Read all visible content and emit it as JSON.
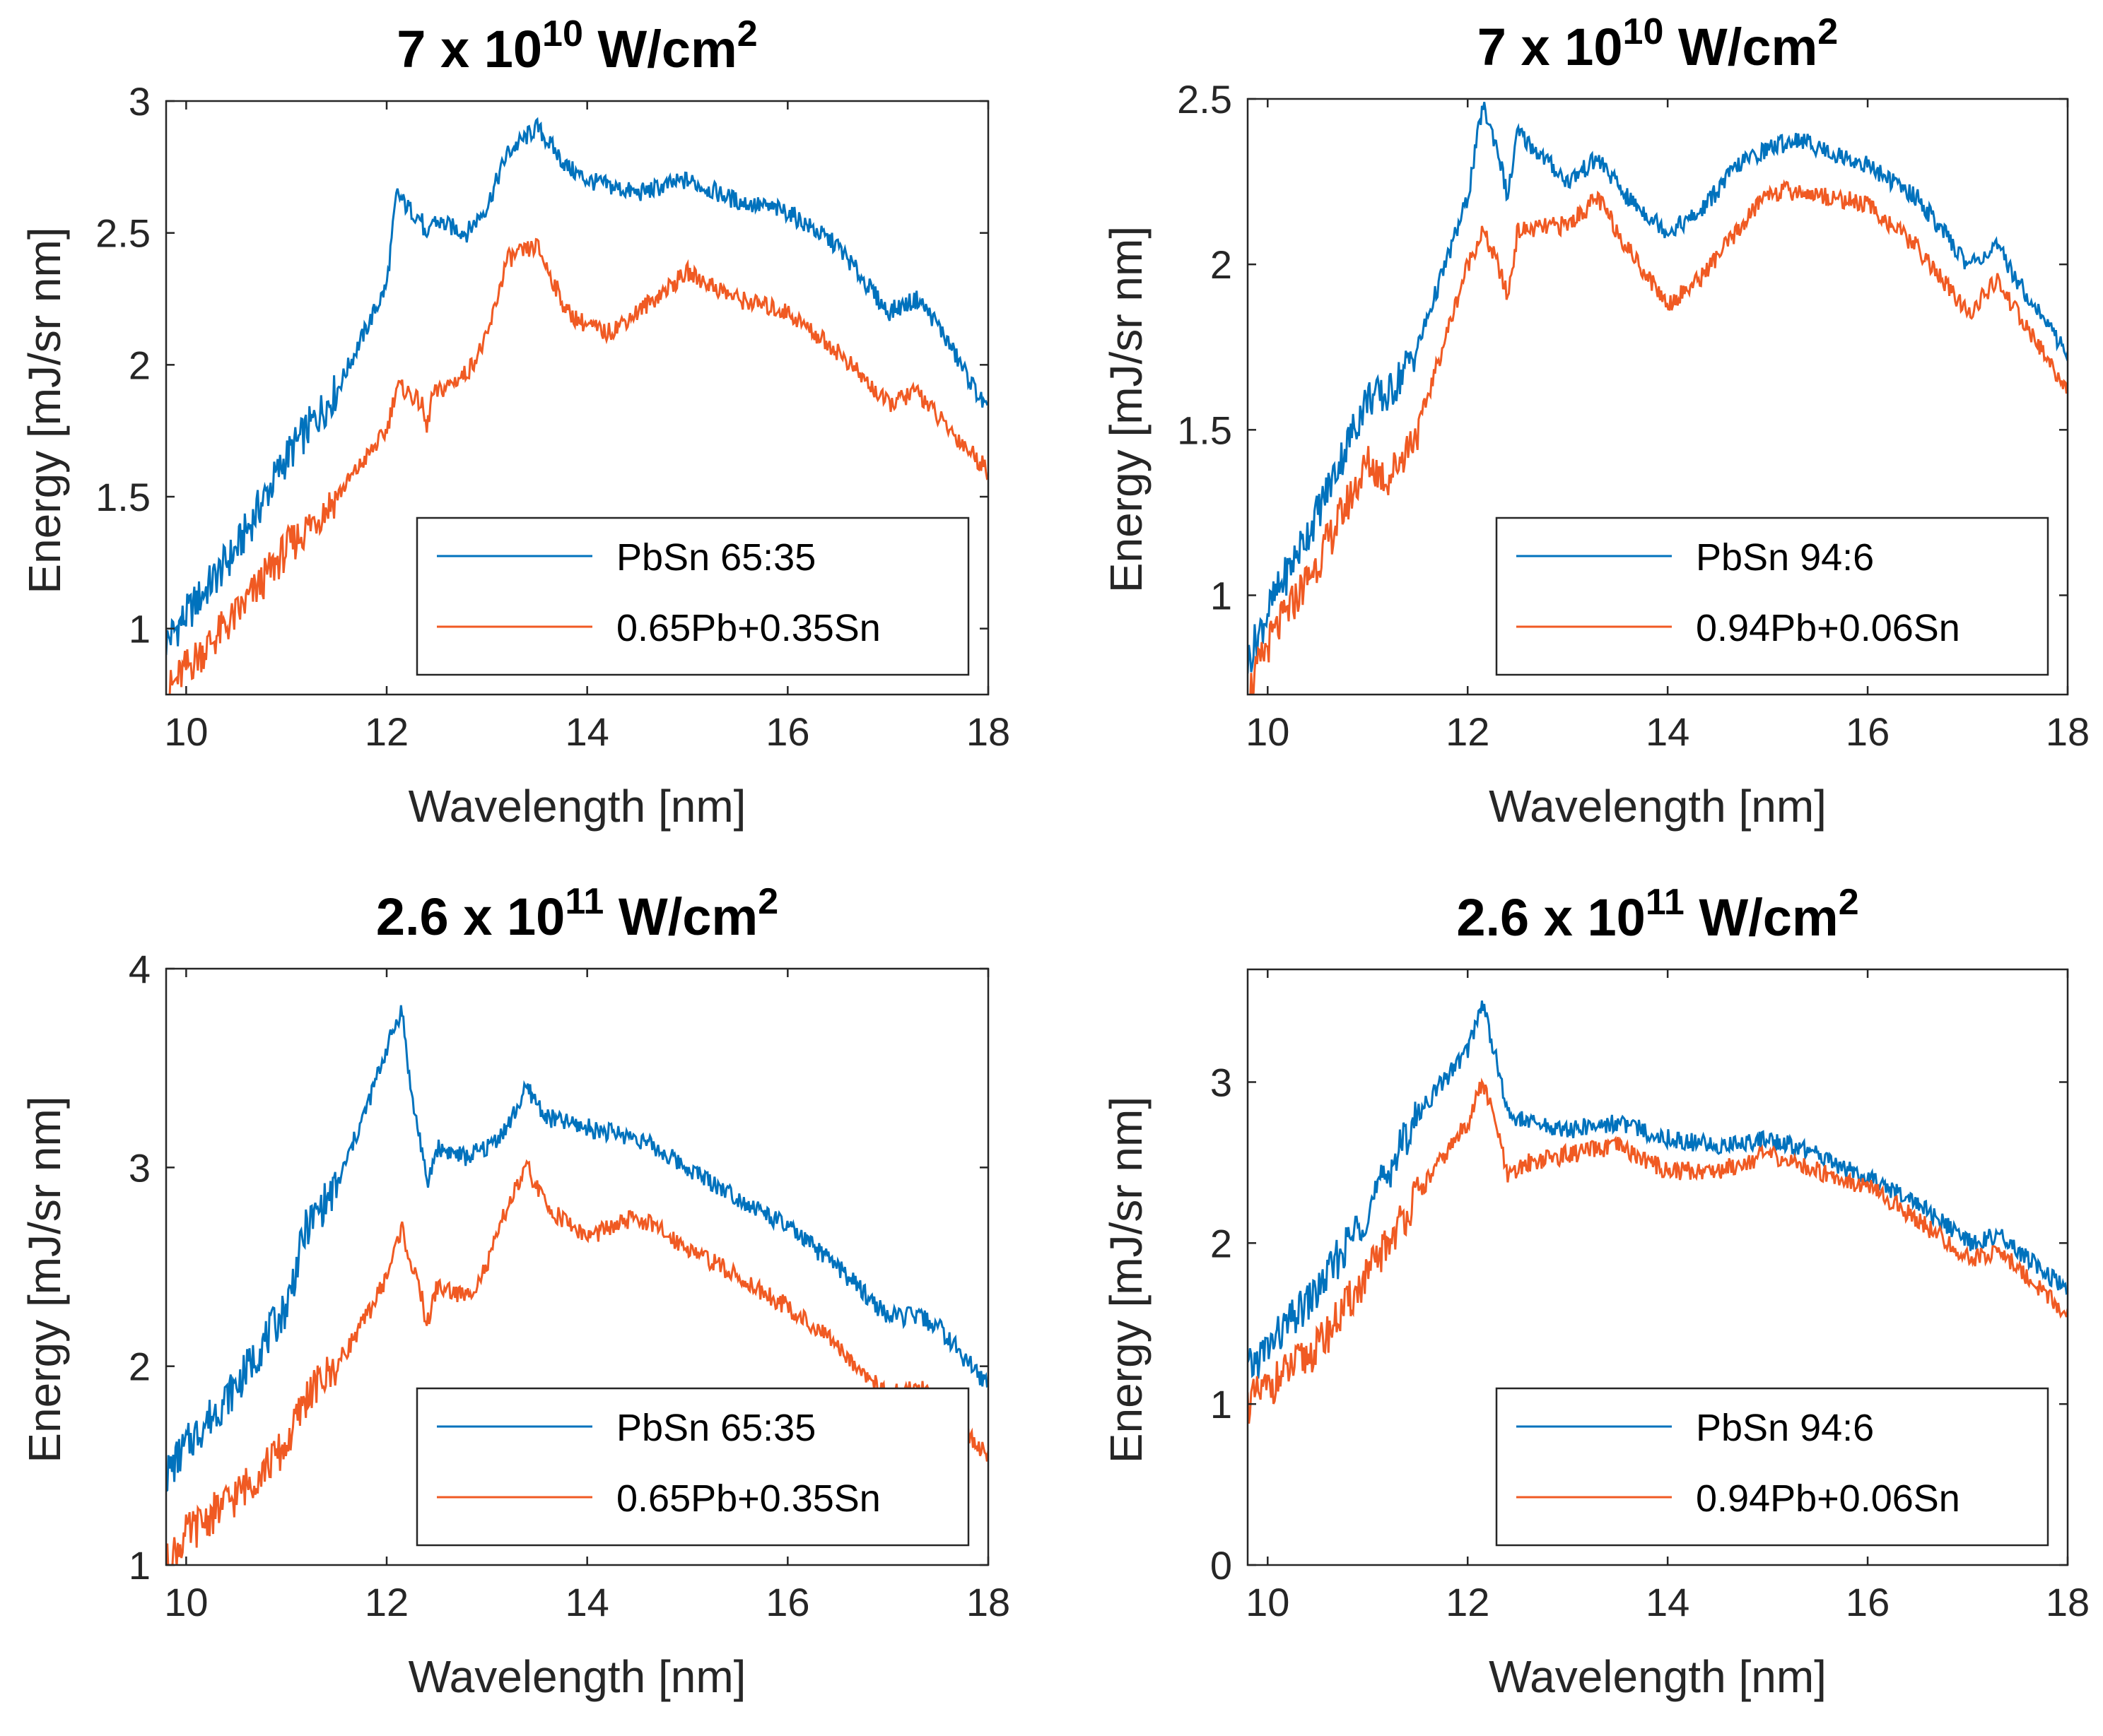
{
  "colors": {
    "blue": "#0072BD",
    "orange": "#F05A23",
    "axis": "#262626"
  },
  "chart_data": [
    {
      "type": "line",
      "title_base": "7 x 10",
      "title_exp": "10",
      "title_unit": " W/cm",
      "title_unit_exp": "2",
      "xlabel": "Wavelength [nm]",
      "ylabel": "Energy [mJ/sr nm]",
      "xlim": [
        9.8,
        18
      ],
      "ylim": [
        0.75,
        3
      ],
      "xticks": [
        10,
        12,
        14,
        16,
        18
      ],
      "xtick_labels": [
        "10",
        "12",
        "14",
        "16",
        "18"
      ],
      "yticks": [
        1,
        1.5,
        2,
        2.5,
        3
      ],
      "ytick_labels": [
        "1",
        "1.5",
        "2",
        "2.5",
        "3"
      ],
      "legend": "bottom-right",
      "x": [
        9.8,
        10.0,
        10.5,
        11.0,
        11.5,
        12.0,
        12.1,
        12.2,
        12.35,
        12.4,
        12.45,
        12.8,
        13.0,
        13.2,
        13.5,
        13.8,
        14.0,
        14.2,
        14.5,
        15.0,
        15.5,
        16.0,
        16.5,
        17.0,
        17.3,
        17.5,
        18.0
      ],
      "series": [
        {
          "name": "PbSn 65:35",
          "color": "blue",
          "values": [
            0.95,
            1.05,
            1.3,
            1.65,
            1.9,
            2.3,
            2.65,
            2.6,
            2.55,
            2.45,
            2.55,
            2.5,
            2.6,
            2.8,
            2.9,
            2.75,
            2.7,
            2.68,
            2.65,
            2.7,
            2.62,
            2.58,
            2.45,
            2.2,
            2.25,
            2.15,
            1.82
          ]
        },
        {
          "name": "0.65Pb+0.35Sn",
          "color": "orange",
          "values": [
            0.75,
            0.85,
            1.05,
            1.3,
            1.5,
            1.75,
            1.92,
            1.9,
            1.85,
            1.75,
            1.88,
            1.97,
            2.1,
            2.4,
            2.45,
            2.2,
            2.15,
            2.12,
            2.2,
            2.35,
            2.25,
            2.2,
            2.05,
            1.85,
            1.9,
            1.8,
            1.6
          ]
        }
      ]
    },
    {
      "type": "line",
      "title_base": "7 x 10",
      "title_exp": "10",
      "title_unit": " W/cm",
      "title_unit_exp": "2",
      "xlabel": "Wavelength [nm]",
      "ylabel": "Energy [mJ/sr nm]",
      "xlim": [
        9.8,
        18
      ],
      "ylim": [
        0.7,
        2.5
      ],
      "xticks": [
        10,
        12,
        14,
        16,
        18
      ],
      "xtick_labels": [
        "10",
        "12",
        "14",
        "16",
        "18"
      ],
      "yticks": [
        1,
        1.5,
        2,
        2.5
      ],
      "ytick_labels": [
        "1",
        "1.5",
        "2",
        "2.5"
      ],
      "legend": "bottom-right",
      "x": [
        9.8,
        10.0,
        10.5,
        11.0,
        11.2,
        11.5,
        12.0,
        12.15,
        12.3,
        12.4,
        12.5,
        13.0,
        13.3,
        13.6,
        14.0,
        14.3,
        14.7,
        15.0,
        15.3,
        15.7,
        16.0,
        16.5,
        17.0,
        17.3,
        17.5,
        18.0
      ],
      "series": [
        {
          "name": "PbSn 94:6",
          "color": "blue",
          "values": [
            0.8,
            0.95,
            1.25,
            1.6,
            1.6,
            1.75,
            2.2,
            2.48,
            2.35,
            2.2,
            2.4,
            2.25,
            2.32,
            2.2,
            2.1,
            2.15,
            2.3,
            2.35,
            2.38,
            2.33,
            2.3,
            2.2,
            2.0,
            2.05,
            1.95,
            1.73
          ]
        },
        {
          "name": "0.94Pb+0.06Sn",
          "color": "orange",
          "values": [
            0.7,
            0.85,
            1.1,
            1.4,
            1.35,
            1.5,
            2.0,
            2.1,
            2.0,
            1.9,
            2.1,
            2.12,
            2.2,
            2.05,
            1.88,
            1.95,
            2.1,
            2.22,
            2.22,
            2.2,
            2.18,
            2.05,
            1.85,
            1.95,
            1.85,
            1.62
          ]
        }
      ]
    },
    {
      "type": "line",
      "title_base": "2.6 x 10",
      "title_exp": "11",
      "title_unit": " W/cm",
      "title_unit_exp": "2",
      "xlabel": "Wavelength [nm]",
      "ylabel": "Energy [mJ/sr nm]",
      "xlim": [
        9.8,
        18
      ],
      "ylim": [
        1,
        4
      ],
      "xticks": [
        10,
        12,
        14,
        16,
        18
      ],
      "xtick_labels": [
        "10",
        "12",
        "14",
        "16",
        "18"
      ],
      "yticks": [
        1,
        2,
        3,
        4
      ],
      "ytick_labels": [
        "1",
        "2",
        "3",
        "4"
      ],
      "legend": "bottom-right",
      "x": [
        9.8,
        10.0,
        10.5,
        11.0,
        11.2,
        11.5,
        11.8,
        12.0,
        12.15,
        12.25,
        12.35,
        12.4,
        12.5,
        12.8,
        13.0,
        13.2,
        13.4,
        13.6,
        14.0,
        14.5,
        15.0,
        15.5,
        16.0,
        16.5,
        17.0,
        17.3,
        17.5,
        18.0
      ],
      "series": [
        {
          "name": "PbSn 65:35",
          "color": "blue",
          "values": [
            1.45,
            1.6,
            1.9,
            2.3,
            2.7,
            2.9,
            3.3,
            3.6,
            3.8,
            3.35,
            3.1,
            2.9,
            3.1,
            3.05,
            3.1,
            3.2,
            3.4,
            3.25,
            3.2,
            3.15,
            3.0,
            2.85,
            2.7,
            2.5,
            2.25,
            2.25,
            2.2,
            1.9
          ]
        },
        {
          "name": "0.65Pb+0.35Sn",
          "color": "orange",
          "values": [
            1.0,
            1.15,
            1.35,
            1.6,
            1.85,
            2.0,
            2.25,
            2.45,
            2.7,
            2.5,
            2.35,
            2.2,
            2.4,
            2.35,
            2.5,
            2.8,
            3.0,
            2.8,
            2.65,
            2.75,
            2.6,
            2.45,
            2.3,
            2.1,
            1.85,
            1.9,
            1.8,
            1.55
          ]
        }
      ]
    },
    {
      "type": "line",
      "title_base": "2.6 x 10",
      "title_exp": "11",
      "title_unit": " W/cm",
      "title_unit_exp": "2",
      "xlabel": "Wavelength [nm]",
      "ylabel": "Energy [mJ/sr nm]",
      "xlim": [
        9.8,
        18
      ],
      "ylim": [
        0,
        3.7
      ],
      "xticks": [
        10,
        12,
        14,
        16,
        18
      ],
      "xtick_labels": [
        "10",
        "12",
        "14",
        "16",
        "18"
      ],
      "yticks": [
        0,
        1,
        2,
        3
      ],
      "ytick_labels": [
        "0",
        "1",
        "2",
        "3"
      ],
      "legend": "bottom-right",
      "x": [
        9.8,
        10.0,
        10.5,
        11.0,
        11.5,
        12.0,
        12.15,
        12.3,
        12.4,
        12.6,
        13.0,
        13.5,
        14.0,
        14.5,
        15.0,
        15.5,
        16.0,
        16.5,
        17.0,
        17.3,
        17.5,
        18.0
      ],
      "series": [
        {
          "name": "PbSn 94:6",
          "color": "blue",
          "values": [
            1.2,
            1.35,
            1.7,
            2.2,
            2.8,
            3.2,
            3.5,
            3.1,
            2.8,
            2.75,
            2.7,
            2.75,
            2.65,
            2.6,
            2.65,
            2.55,
            2.4,
            2.25,
            2.0,
            2.05,
            1.95,
            1.7
          ]
        },
        {
          "name": "0.94Pb+0.06Sn",
          "color": "orange",
          "values": [
            1.0,
            1.1,
            1.35,
            1.8,
            2.3,
            2.75,
            3.0,
            2.7,
            2.4,
            2.5,
            2.55,
            2.6,
            2.45,
            2.45,
            2.55,
            2.45,
            2.35,
            2.15,
            1.9,
            1.95,
            1.85,
            1.55
          ]
        }
      ]
    }
  ]
}
